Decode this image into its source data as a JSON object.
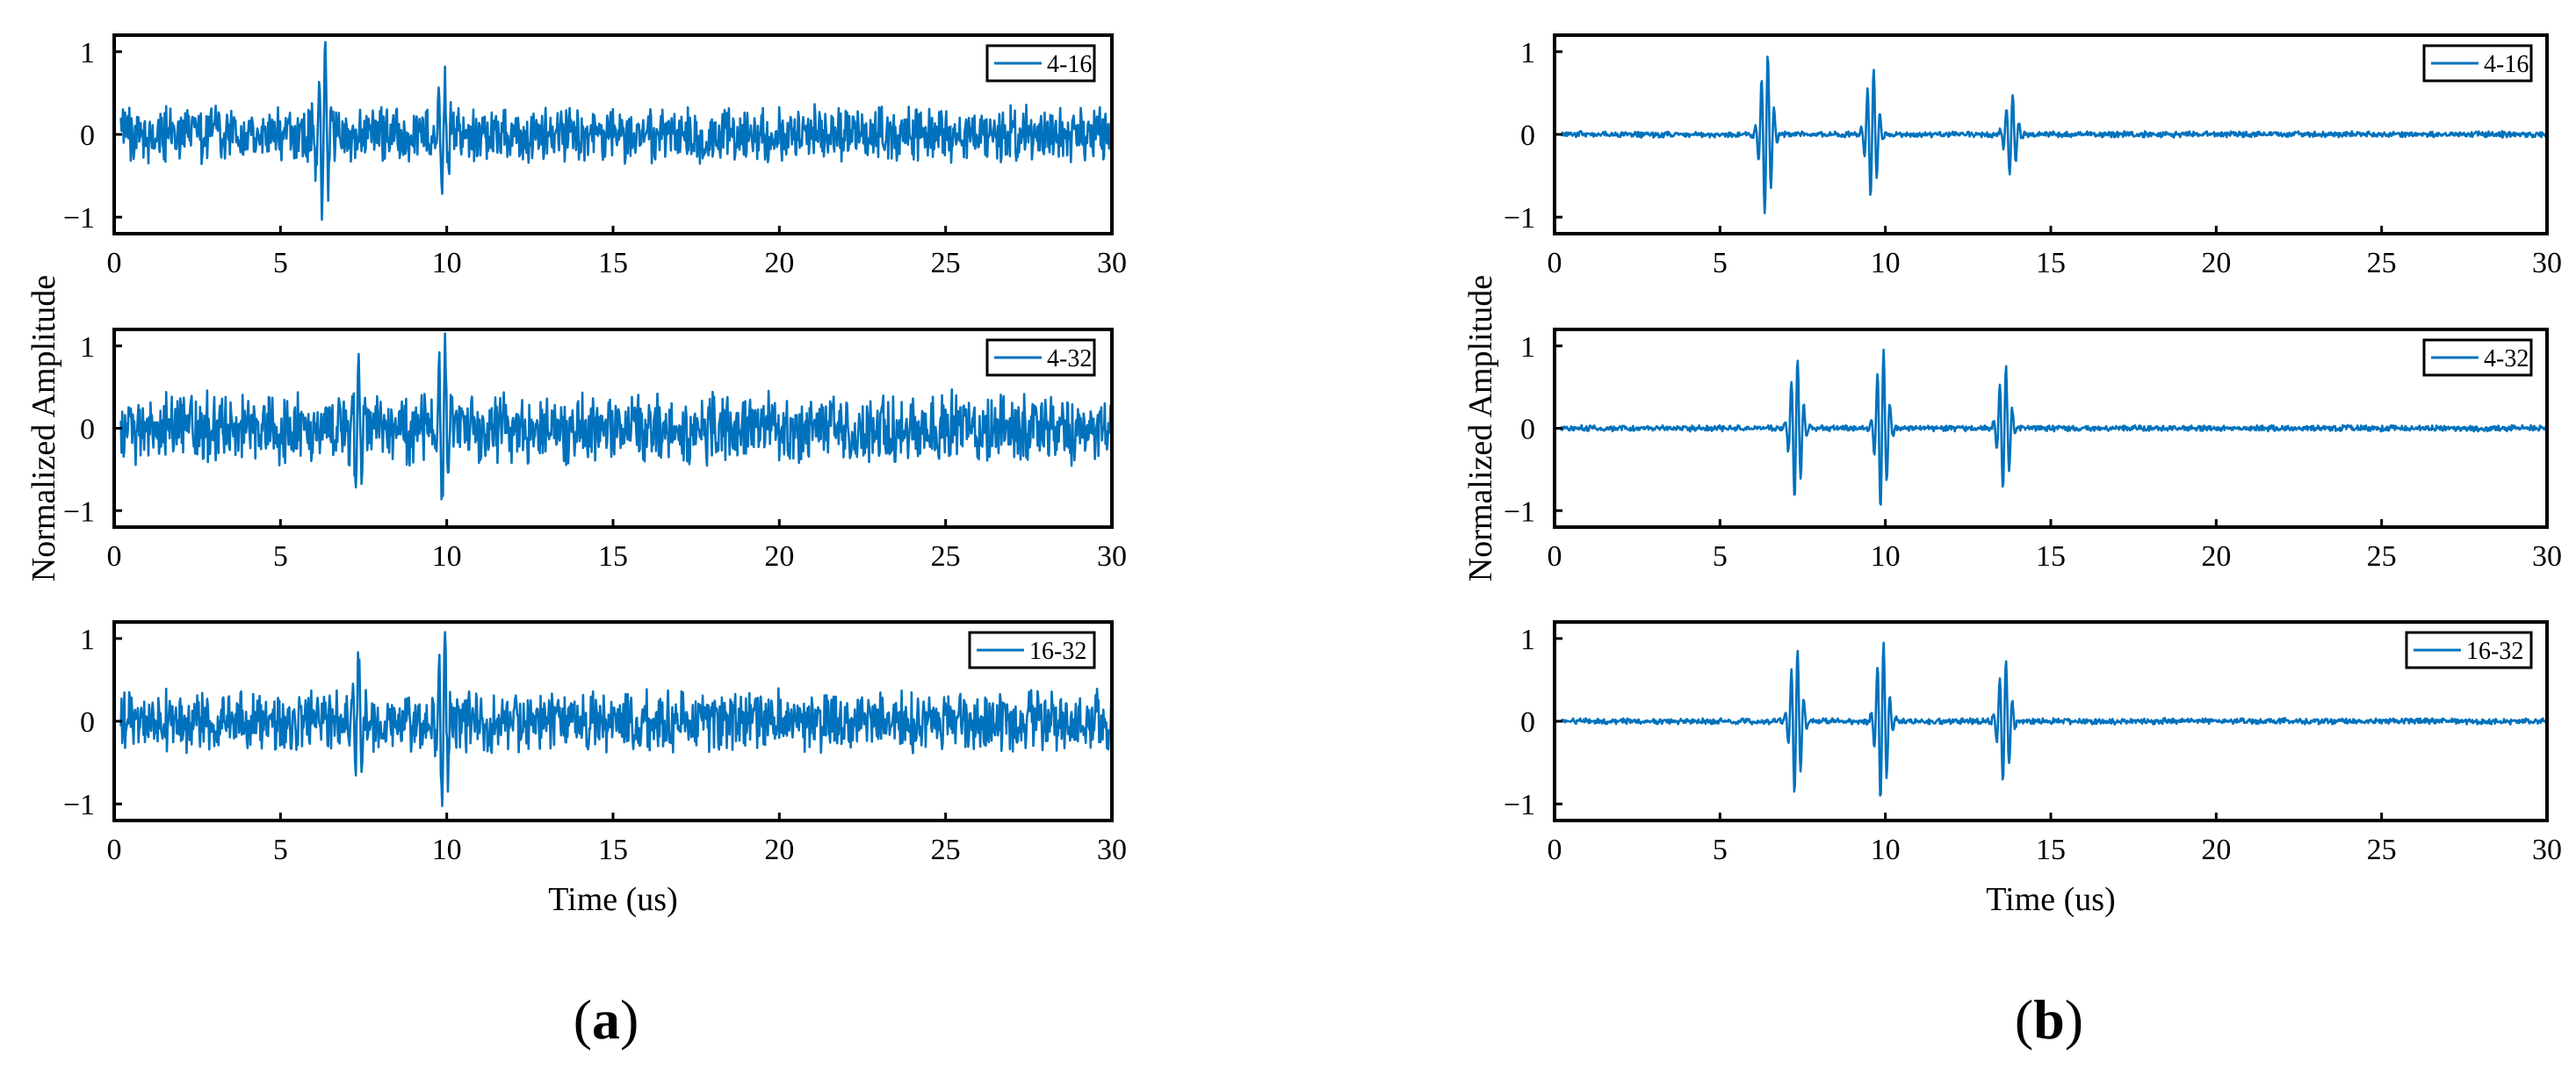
{
  "chart_data": [
    {
      "panel": "(a)",
      "type": "line",
      "xlabel": "Time (us)",
      "ylabel": "Normalized Amplitude",
      "xlim": [
        0,
        30
      ],
      "ylim": [
        -1.2,
        1.2
      ],
      "xticks": [
        0,
        5,
        10,
        15,
        20,
        25,
        30
      ],
      "yticks": [
        -1,
        0,
        1
      ],
      "legend_position": "top-right",
      "color": "#0072BD",
      "subplots": [
        {
          "legend": "4-16",
          "noise": 0.24,
          "bursts": [
            {
              "t": 6.3,
              "a": 1.0
            },
            {
              "t": 9.9,
              "a": 0.6
            }
          ]
        },
        {
          "legend": "4-32",
          "noise": 0.3,
          "bursts": [
            {
              "t": 7.3,
              "a": 0.7
            },
            {
              "t": 9.9,
              "a": 1.0
            }
          ]
        },
        {
          "legend": "16-32",
          "noise": 0.26,
          "bursts": [
            {
              "t": 7.3,
              "a": 0.7
            },
            {
              "t": 9.9,
              "a": 1.0
            }
          ]
        }
      ]
    },
    {
      "panel": "(b)",
      "type": "line",
      "xlabel": "Time (us)",
      "ylabel": "Normalized Amplitude",
      "xlim": [
        0,
        30
      ],
      "ylim": [
        -1.2,
        1.2
      ],
      "xticks": [
        0,
        5,
        10,
        15,
        20,
        25,
        30
      ],
      "yticks": [
        -1,
        0,
        1
      ],
      "legend_position": "top-right",
      "color": "#0072BD",
      "subplots": [
        {
          "legend": "4-16",
          "noise": 0.025,
          "bursts": [
            {
              "t": 6.4,
              "a": 1.0
            },
            {
              "t": 9.6,
              "a": 0.8
            },
            {
              "t": 13.8,
              "a": 0.5
            }
          ]
        },
        {
          "legend": "4-32",
          "noise": 0.025,
          "bursts": [
            {
              "t": 7.3,
              "a": 0.9
            },
            {
              "t": 9.9,
              "a": 1.0
            },
            {
              "t": 13.6,
              "a": 0.78
            }
          ]
        },
        {
          "legend": "16-32",
          "noise": 0.025,
          "bursts": [
            {
              "t": 7.3,
              "a": 0.9
            },
            {
              "t": 9.9,
              "a": 1.0
            },
            {
              "t": 13.6,
              "a": 0.78
            }
          ]
        }
      ]
    }
  ]
}
